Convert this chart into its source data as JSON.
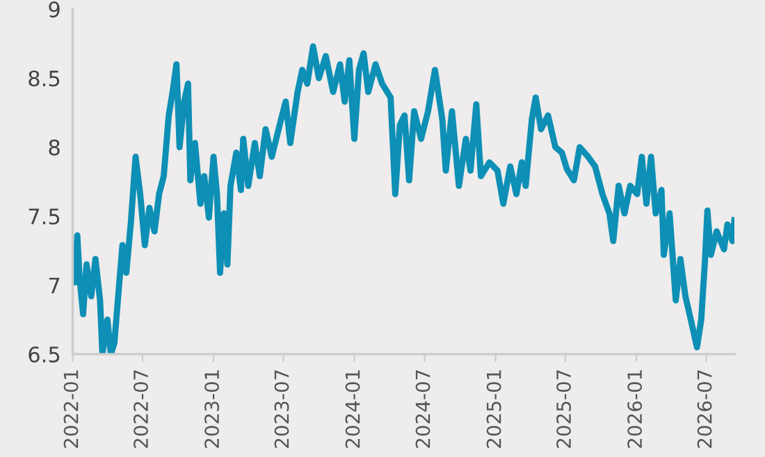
{
  "chart_data": {
    "type": "line",
    "x": [
      "2022-01-01",
      "2022-01-07",
      "2022-01-13",
      "2022-01-19",
      "2022-01-28",
      "2022-02-06",
      "2022-02-18",
      "2022-03-01",
      "2022-03-13",
      "2022-03-19",
      "2022-04-01",
      "2022-04-10",
      "2022-04-19",
      "2022-05-01",
      "2022-05-10",
      "2022-05-20",
      "2022-06-01",
      "2022-06-13",
      "2022-06-25",
      "2022-07-07",
      "2022-07-19",
      "2022-08-01",
      "2022-08-13",
      "2022-08-25",
      "2022-09-07",
      "2022-09-17",
      "2022-09-27",
      "2022-10-05",
      "2022-10-17",
      "2022-10-27",
      "2022-11-02",
      "2022-11-14",
      "2022-11-28",
      "2022-12-08",
      "2022-12-20",
      "2023-01-01",
      "2023-01-10",
      "2023-01-18",
      "2023-01-28",
      "2023-02-06",
      "2023-02-14",
      "2023-03-01",
      "2023-03-13",
      "2023-03-19",
      "2023-04-01",
      "2023-04-18",
      "2023-05-01",
      "2023-05-16",
      "2023-06-01",
      "2023-06-25",
      "2023-07-07",
      "2023-07-19",
      "2023-08-07",
      "2023-08-19",
      "2023-09-01",
      "2023-09-16",
      "2023-10-01",
      "2023-10-19",
      "2023-11-07",
      "2023-11-25",
      "2023-12-07",
      "2023-12-19",
      "2024-01-01",
      "2024-01-13",
      "2024-01-25",
      "2024-02-06",
      "2024-02-25",
      "2024-03-13",
      "2024-04-04",
      "2024-04-16",
      "2024-04-28",
      "2024-05-10",
      "2024-05-22",
      "2024-06-04",
      "2024-06-22",
      "2024-07-10",
      "2024-07-28",
      "2024-08-16",
      "2024-08-25",
      "2024-09-10",
      "2024-09-28",
      "2024-10-16",
      "2024-10-28",
      "2024-11-12",
      "2024-11-24",
      "2024-12-16",
      "2025-01-06",
      "2025-01-21",
      "2025-02-08",
      "2025-02-24",
      "2025-03-10",
      "2025-03-20",
      "2025-04-05",
      "2025-04-15",
      "2025-04-29",
      "2025-05-17",
      "2025-06-05",
      "2025-06-22",
      "2025-07-05",
      "2025-07-23",
      "2025-08-07",
      "2025-08-29",
      "2025-09-16",
      "2025-10-05",
      "2025-10-23",
      "2025-11-02",
      "2025-11-16",
      "2025-12-01",
      "2025-12-16",
      "2026-01-03",
      "2026-01-15",
      "2026-01-27",
      "2026-02-08",
      "2026-02-20",
      "2026-03-07",
      "2026-03-13",
      "2026-03-28",
      "2026-04-13",
      "2026-04-25",
      "2026-05-08",
      "2026-05-22",
      "2026-06-07",
      "2026-06-18",
      "2026-06-28",
      "2026-07-04",
      "2026-07-13",
      "2026-07-28",
      "2026-08-16",
      "2026-08-25",
      "2026-09-07",
      "2026-09-12"
    ],
    "series": [
      {
        "color": "#0e8fb5",
        "values": [
          7.29,
          7.02,
          7.36,
          7.05,
          6.79,
          7.15,
          6.92,
          7.19,
          6.89,
          6.5,
          6.75,
          6.5,
          6.58,
          6.99,
          7.29,
          7.09,
          7.46,
          7.93,
          7.66,
          7.29,
          7.56,
          7.39,
          7.66,
          7.79,
          8.23,
          8.4,
          8.6,
          8.0,
          8.33,
          8.46,
          7.76,
          8.03,
          7.59,
          7.79,
          7.49,
          7.93,
          7.66,
          7.09,
          7.52,
          7.15,
          7.72,
          7.96,
          7.69,
          8.06,
          7.72,
          8.03,
          7.79,
          8.13,
          7.93,
          8.2,
          8.33,
          8.03,
          8.4,
          8.56,
          8.46,
          8.73,
          8.5,
          8.66,
          8.4,
          8.6,
          8.33,
          8.63,
          8.06,
          8.56,
          8.68,
          8.4,
          8.6,
          8.46,
          8.36,
          7.66,
          8.16,
          8.23,
          7.76,
          8.26,
          8.06,
          8.26,
          8.56,
          8.2,
          7.83,
          8.26,
          7.72,
          8.06,
          7.83,
          8.31,
          7.79,
          7.89,
          7.83,
          7.59,
          7.86,
          7.66,
          7.89,
          7.72,
          8.2,
          8.36,
          8.13,
          8.23,
          8.0,
          7.96,
          7.84,
          7.76,
          8.0,
          7.93,
          7.86,
          7.66,
          7.52,
          7.32,
          7.72,
          7.52,
          7.72,
          7.66,
          7.93,
          7.59,
          7.93,
          7.52,
          7.69,
          7.22,
          7.52,
          6.89,
          7.19,
          6.92,
          6.75,
          6.55,
          6.75,
          7.19,
          7.54,
          7.22,
          7.39,
          7.26,
          7.44,
          7.32,
          7.47
        ]
      }
    ],
    "xlim": [
      "2022-01-01",
      "2026-09-12"
    ],
    "xticks": [
      {
        "value": "2022-01-01",
        "label": "2022-01"
      },
      {
        "value": "2022-07-01",
        "label": "2022-07"
      },
      {
        "value": "2023-01-01",
        "label": "2023-01"
      },
      {
        "value": "2023-07-01",
        "label": "2023-07"
      },
      {
        "value": "2024-01-01",
        "label": "2024-01"
      },
      {
        "value": "2024-07-01",
        "label": "2024-07"
      },
      {
        "value": "2025-01-01",
        "label": "2025-01"
      },
      {
        "value": "2025-07-01",
        "label": "2025-07"
      },
      {
        "value": "2026-01-01",
        "label": "2026-01"
      },
      {
        "value": "2026-07-01",
        "label": "2026-07"
      }
    ],
    "ylim": [
      6.5,
      9
    ],
    "yticks": [
      6.5,
      7,
      7.5,
      8,
      8.5,
      9
    ],
    "grid": false,
    "legend": false,
    "marker": "none",
    "line_style": "solid"
  }
}
